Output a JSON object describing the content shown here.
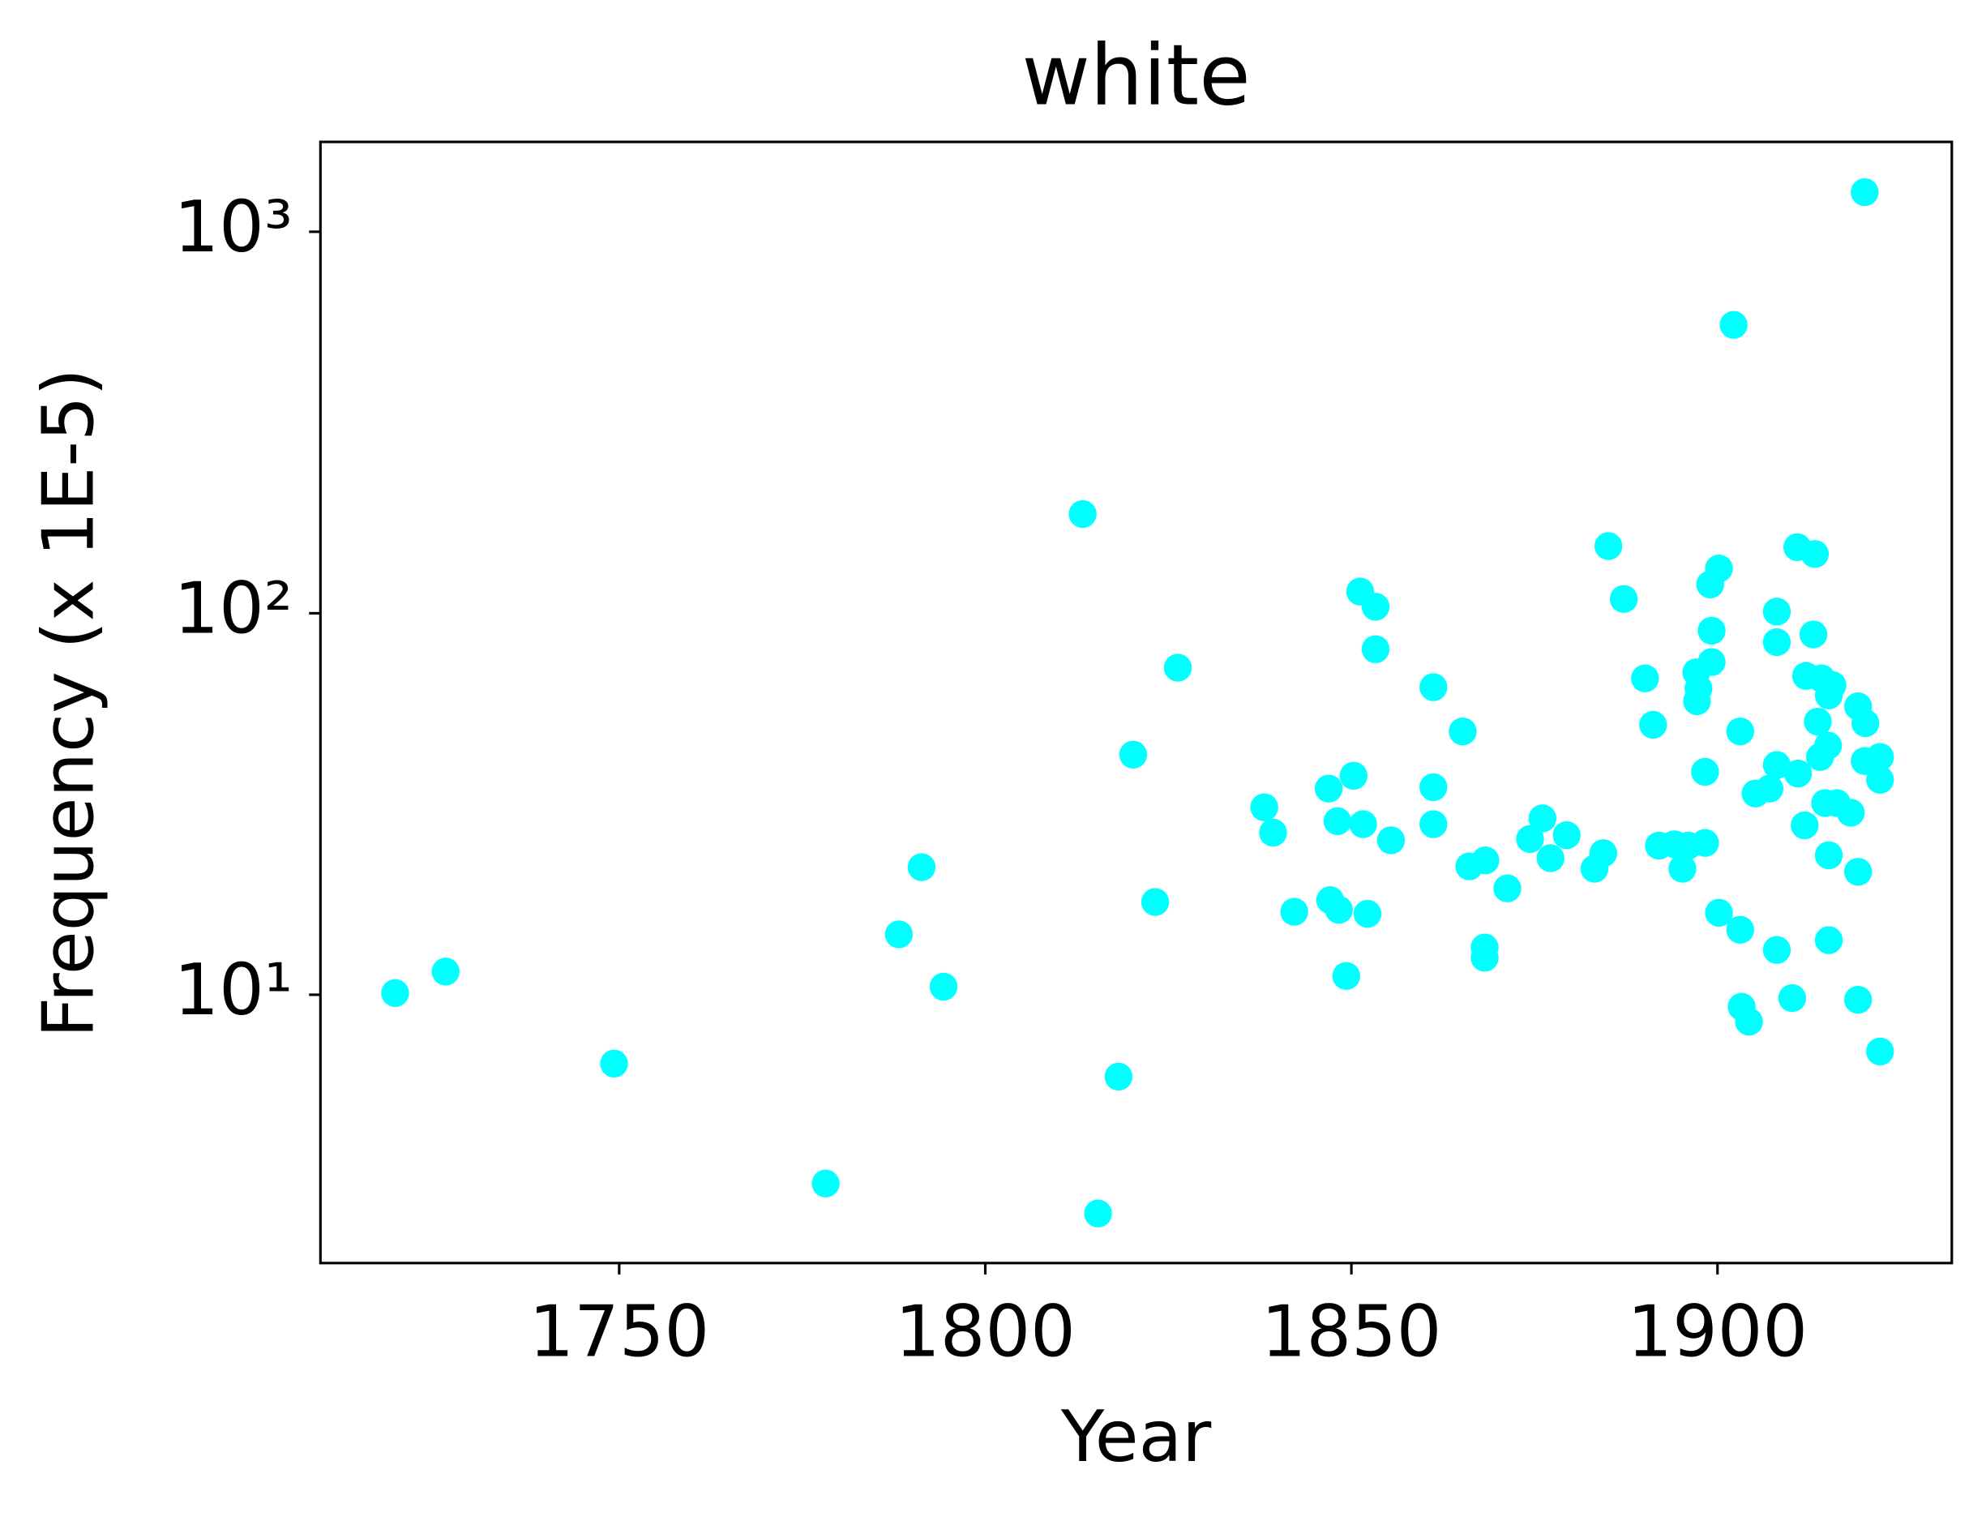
{
  "chart_data": {
    "type": "scatter",
    "title": "white",
    "x_label": "Year",
    "y_label": "Frequency (x 1E-5)",
    "color": "#00ffff",
    "log_y": true,
    "grid": false,
    "xlim": [
      1709.2,
      1932.0
    ],
    "ylim": [
      1.98,
      1720
    ],
    "xticks": [
      1750,
      1800,
      1850,
      1900
    ],
    "yticks": [
      {
        "value": 10,
        "label": "10¹"
      },
      {
        "value": 100,
        "label": "10²"
      },
      {
        "value": 1000,
        "label": "10³"
      }
    ],
    "x": [
      1719.4,
      1726.3,
      1749.3,
      1778.2,
      1788.2,
      1791.3,
      1794.3,
      1813.3,
      1815.4,
      1818.2,
      1820.2,
      1823.2,
      1826.3,
      1838.1,
      1839.3,
      1842.2,
      1846.9,
      1847.1,
      1848.1,
      1848.3,
      1849.3,
      1850.3,
      1851.2,
      1851.6,
      1852.2,
      1853.3,
      1853.3,
      1855.4,
      1861.2,
      1861.2,
      1861.2,
      1865.2,
      1866.1,
      1868.2,
      1868.2,
      1868.3,
      1871.3,
      1874.4,
      1876.1,
      1877.2,
      1879.4,
      1883.2,
      1884.4,
      1885.1,
      1887.2,
      1890.1,
      1891.2,
      1892.0,
      1894.1,
      1895.2,
      1896.0,
      1897.1,
      1897.2,
      1897.4,
      1898.3,
      1898.3,
      1899.0,
      1899.2,
      1899.2,
      1900.2,
      1900.2,
      1902.2,
      1903.1,
      1903.1,
      1903.3,
      1904.3,
      1905.2,
      1907.1,
      1908.1,
      1908.1,
      1908.1,
      1908.1,
      1910.2,
      1910.9,
      1911.0,
      1911.9,
      1912.1,
      1913.1,
      1913.3,
      1913.7,
      1914.0,
      1914.2,
      1914.7,
      1915.1,
      1915.2,
      1915.2,
      1915.2,
      1915.7,
      1916.3,
      1918.2,
      1919.2,
      1919.2,
      1919.2,
      1920.1,
      1920.1,
      1920.2,
      1922.2,
      1922.2,
      1922.2
    ],
    "values": [
      10.1,
      11.5,
      6.6,
      3.2,
      14.4,
      21.6,
      10.5,
      182,
      2.67,
      6.1,
      42.6,
      17.5,
      72,
      31,
      26.6,
      16.5,
      34.7,
      17.7,
      28.5,
      16.7,
      11.2,
      37.5,
      114,
      28,
      16.3,
      104,
      80.5,
      25.4,
      64,
      35,
      28,
      49,
      21.7,
      13.3,
      12.5,
      22.5,
      19.0,
      25.6,
      29,
      22.8,
      26.2,
      21.4,
      23.5,
      150,
      109,
      67.5,
      51,
      24.6,
      24.8,
      21.4,
      24.6,
      70,
      58.8,
      63.5,
      38.4,
      25,
      119,
      90,
      74.5,
      131,
      16.4,
      570,
      14.8,
      49,
      9.3,
      8.5,
      33.7,
      34.7,
      101,
      84,
      40,
      13.1,
      9.8,
      149,
      38,
      27.8,
      68.5,
      88,
      143,
      52,
      42,
      67.5,
      31.8,
      45,
      13.9,
      23.2,
      60.9,
      64.8,
      31.8,
      30,
      57,
      9.7,
      21,
      1270,
      41,
      51.5,
      42,
      36.6,
      7.1
    ]
  }
}
